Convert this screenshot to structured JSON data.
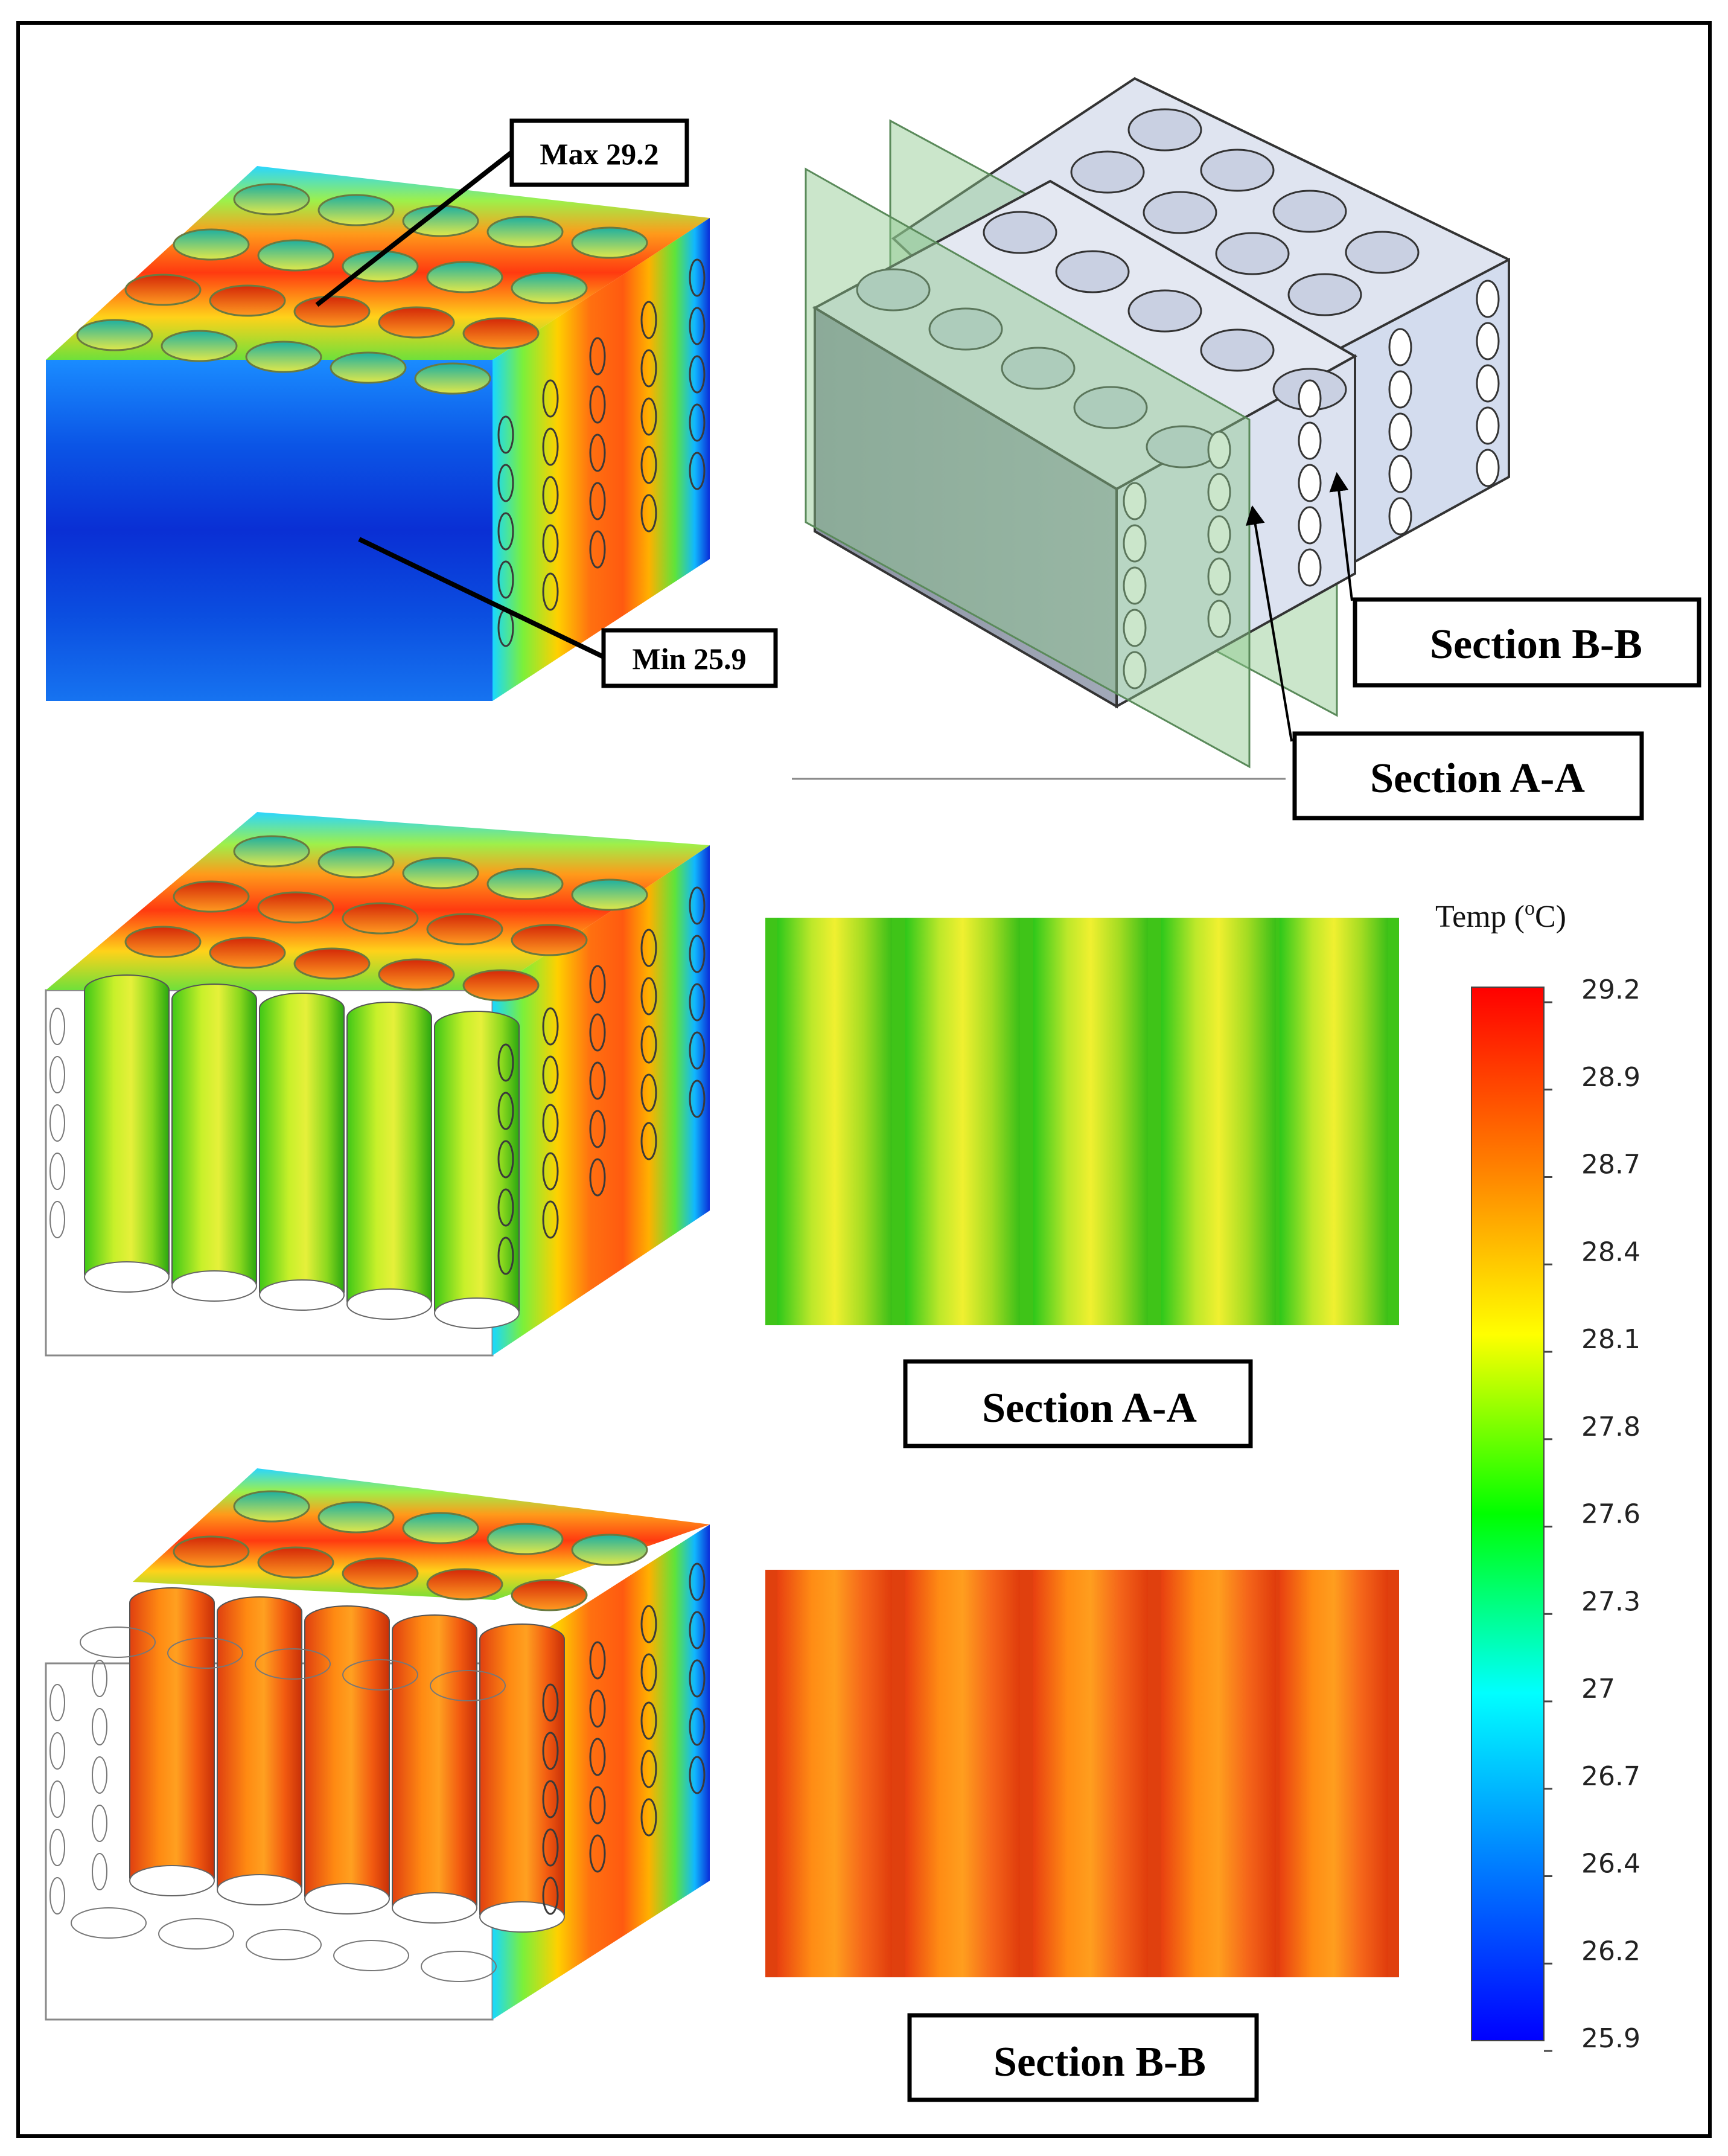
{
  "callouts": {
    "max": "Max 29.2",
    "min": "Min 25.9"
  },
  "sections": {
    "a_top": "Section A-A",
    "b_top": "Section B-B",
    "a_mid": "Section A-A",
    "b_bot": "Section B-B"
  },
  "legend": {
    "title_prefix": "Temp (",
    "title_sup": "o",
    "title_suffix": "C)",
    "ticks": [
      "29.2",
      "28.9",
      "28.7",
      "28.4",
      "28.1",
      "27.8",
      "27.6",
      "27.3",
      "27",
      "26.7",
      "26.4",
      "26.2",
      "25.9"
    ],
    "colors": [
      "#ff0000",
      "#ff8000",
      "#ffff00",
      "#00ff00",
      "#00ffff",
      "#0080ff",
      "#0000ff"
    ]
  }
}
